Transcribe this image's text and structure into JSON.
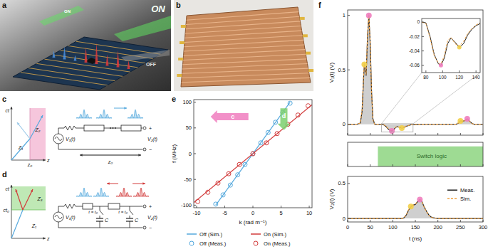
{
  "panels": {
    "labels": [
      "a",
      "b",
      "c",
      "d",
      "e",
      "f"
    ],
    "a": {
      "texts": [
        "ON",
        "OFF",
        "ON"
      ]
    },
    "c": {
      "spacetime": {
        "time_axis": "ct",
        "space_axis": "z",
        "boundary": "z₀",
        "regions": [
          "Z₁",
          "Z₂"
        ]
      },
      "circuit": {
        "source": "V₁(t)",
        "load": "V₂(t)",
        "polarity": [
          "+",
          "−"
        ],
        "length": "z₀"
      }
    },
    "d": {
      "spacetime": {
        "time_axis": "ct",
        "space_axis": "z",
        "boundary": "ct₀",
        "regions": [
          "Z₁",
          "Z₃"
        ]
      },
      "circuit": {
        "source": "V₁(t)",
        "load": "V₂(t)",
        "polarity": [
          "+",
          "−"
        ],
        "switch_labels": [
          "t = t₀",
          "t = t₀"
        ],
        "capacitor_labels": [
          "C",
          "C"
        ]
      }
    }
  },
  "chart_data": [
    {
      "type": "line",
      "x_label": "k (rad m⁻¹)",
      "y_label": "f (MHz)",
      "xlim": [
        -10.5,
        10.5
      ],
      "ylim": [
        -105,
        105
      ],
      "xticks": [
        -10,
        -5,
        0,
        5,
        10
      ],
      "yticks": [
        -100,
        -50,
        0,
        50,
        100
      ],
      "grid": false,
      "legend": "bottom",
      "series": [
        {
          "name": "Off (Sim.)",
          "type": "line",
          "color": "#55a9dd",
          "x": [
            -6.6,
            6.6
          ],
          "values": [
            -100,
            100
          ]
        },
        {
          "name": "On (Sim.)",
          "type": "line",
          "color": "#d23b3b",
          "x": [
            -10.5,
            10.5
          ],
          "values": [
            -95,
            95
          ]
        },
        {
          "name": "Off (Meas.)",
          "type": "scatter",
          "marker": "open-circle",
          "color": "#55a9dd",
          "x": [
            -6.6,
            -5.3,
            -4,
            -2.7,
            -1.4,
            0,
            1.4,
            2.7,
            4,
            5.3,
            6.6
          ],
          "values": [
            -98,
            -80,
            -61,
            -41,
            -21,
            0,
            21,
            41,
            61,
            80,
            98
          ]
        },
        {
          "name": "On (Meas.)",
          "type": "scatter",
          "marker": "open-circle",
          "color": "#d23b3b",
          "x": [
            -9.8,
            -8,
            -6.2,
            -4.3,
            -2.4,
            0,
            2.4,
            4.3,
            6.2,
            8,
            9.8
          ],
          "values": [
            -93,
            -75,
            -57,
            -39,
            -21,
            0,
            21,
            39,
            57,
            75,
            93
          ]
        }
      ],
      "annotations": [
        {
          "text": "c",
          "color": "#f07dbe",
          "x": -0.8,
          "y": 72,
          "x_end": -7.5,
          "y_end": 72
        },
        {
          "text": "d",
          "color": "#7ccf6e",
          "x": 5.5,
          "y": 88,
          "x_end": 5.5,
          "y_end": 46
        }
      ]
    },
    {
      "type": "line",
      "y_label": "V₁(t) (V)",
      "xlim": [
        0,
        300
      ],
      "ylim": [
        -0.1,
        1.05
      ],
      "xticks": [
        0,
        50,
        100,
        150,
        200,
        250,
        300
      ],
      "yticks": [
        0,
        0.5,
        1
      ],
      "tick_labels": "y",
      "series": [
        {
          "type": "area",
          "color": "#222222",
          "x": [
            0,
            20,
            28,
            32,
            35,
            37,
            39,
            41,
            44,
            47,
            50,
            53,
            56,
            60,
            70,
            80,
            85,
            90,
            95,
            98,
            102,
            106,
            110,
            115,
            120,
            125,
            130,
            140,
            160,
            200,
            240,
            245,
            250,
            255,
            260,
            265,
            270,
            275,
            280,
            300
          ],
          "values": [
            0,
            0,
            0.01,
            0.12,
            0.4,
            0.55,
            0.5,
            0.45,
            0.8,
            1.0,
            0.75,
            0.3,
            0.05,
            0,
            0,
            -0.005,
            -0.02,
            -0.045,
            -0.058,
            -0.06,
            -0.05,
            -0.03,
            -0.022,
            -0.028,
            -0.035,
            -0.03,
            -0.018,
            -0.005,
            0,
            0,
            0,
            0.01,
            0.03,
            0.028,
            0.035,
            0.05,
            0.03,
            0.01,
            0,
            0
          ]
        },
        {
          "type": "line",
          "line_style": "dashed",
          "color": "#f0a040",
          "x": [
            0,
            20,
            28,
            32,
            35,
            37,
            39,
            41,
            44,
            47,
            50,
            53,
            56,
            60,
            70,
            80,
            85,
            90,
            95,
            98,
            102,
            106,
            110,
            115,
            120,
            125,
            130,
            140,
            160,
            200,
            240,
            245,
            250,
            255,
            260,
            265,
            270,
            275,
            280,
            300
          ],
          "values": [
            0,
            0,
            0.01,
            0.13,
            0.42,
            0.56,
            0.49,
            0.46,
            0.82,
            1.01,
            0.73,
            0.28,
            0.04,
            0,
            0,
            -0.004,
            -0.018,
            -0.042,
            -0.056,
            -0.058,
            -0.048,
            -0.028,
            -0.02,
            -0.027,
            -0.034,
            -0.028,
            -0.016,
            -0.004,
            0,
            0,
            0,
            0.012,
            0.032,
            0.027,
            0.034,
            0.048,
            0.028,
            0.008,
            0,
            0
          ]
        }
      ],
      "markers": {
        "x": [
          37,
          47,
          98,
          120,
          250,
          265
        ],
        "values": [
          0.55,
          1.0,
          -0.06,
          -0.035,
          0.03,
          0.05
        ],
        "colors": [
          "#f2cf4a",
          "#f07dbe",
          "#f07dbe",
          "#f2cf4a",
          "#f2cf4a",
          "#f07dbe"
        ]
      }
    },
    {
      "type": "line",
      "xlim": [
        75,
        145
      ],
      "ylim": [
        -0.07,
        0.005
      ],
      "xticks": [
        80,
        100,
        120,
        140
      ],
      "yticks": [
        0,
        -0.02,
        -0.04,
        -0.06
      ],
      "series": [
        {
          "type": "line",
          "color": "#222222",
          "x": [
            75,
            80,
            85,
            90,
            95,
            98,
            102,
            106,
            110,
            115,
            120,
            125,
            130,
            135,
            140,
            145
          ],
          "values": [
            0,
            -0.001,
            -0.02,
            -0.045,
            -0.058,
            -0.06,
            -0.05,
            -0.03,
            -0.022,
            -0.028,
            -0.035,
            -0.03,
            -0.018,
            -0.01,
            -0.005,
            -0.002
          ]
        },
        {
          "type": "line",
          "line_style": "dashed",
          "color": "#f0a040",
          "x": [
            75,
            80,
            85,
            90,
            95,
            98,
            102,
            106,
            110,
            115,
            120,
            125,
            130,
            135,
            140,
            145
          ],
          "values": [
            0,
            -0.002,
            -0.022,
            -0.047,
            -0.057,
            -0.058,
            -0.047,
            -0.026,
            -0.021,
            -0.03,
            -0.033,
            -0.027,
            -0.016,
            -0.009,
            -0.004,
            -0.001
          ]
        }
      ],
      "markers": {
        "x": [
          98,
          120
        ],
        "values": [
          -0.06,
          -0.035
        ],
        "colors": [
          "#f07dbe",
          "#f2cf4a"
        ]
      }
    },
    {
      "type": "area",
      "title": "Switch logic",
      "xlim": [
        0,
        300
      ],
      "ylim": [
        0,
        1.2
      ],
      "xticks": [
        0,
        50,
        100,
        150,
        200,
        250,
        300
      ],
      "tick_labels": false,
      "color": "#9edb93",
      "x": [
        0,
        67,
        67,
        300
      ],
      "values": [
        0,
        0,
        1,
        1
      ]
    },
    {
      "type": "line",
      "x_label": "t (ns)",
      "y_label": "V₂(t) (V)",
      "xlim": [
        0,
        300
      ],
      "ylim": [
        -0.05,
        0.6
      ],
      "xticks": [
        0,
        50,
        100,
        150,
        200,
        250,
        300
      ],
      "yticks": [
        0,
        0.5
      ],
      "legend": "right",
      "series": [
        {
          "name": "Meas.",
          "type": "area",
          "color": "#222222",
          "x": [
            0,
            100,
            120,
            125,
            130,
            135,
            140,
            145,
            150,
            155,
            160,
            163,
            166,
            170,
            175,
            180,
            185,
            190,
            200,
            250,
            300
          ],
          "values": [
            0,
            0,
            0,
            0.01,
            0.05,
            0.12,
            0.17,
            0.19,
            0.2,
            0.24,
            0.27,
            0.26,
            0.22,
            0.16,
            0.1,
            0.05,
            0.02,
            0.01,
            0,
            0,
            0
          ]
        },
        {
          "name": "Sim.",
          "type": "line",
          "line_style": "dashed",
          "color": "#f0a040",
          "x": [
            0,
            100,
            120,
            125,
            130,
            135,
            140,
            145,
            150,
            155,
            160,
            163,
            166,
            170,
            175,
            180,
            185,
            190,
            200,
            250,
            300
          ],
          "values": [
            0,
            0,
            0,
            0.012,
            0.055,
            0.125,
            0.172,
            0.188,
            0.205,
            0.245,
            0.275,
            0.262,
            0.218,
            0.155,
            0.095,
            0.045,
            0.018,
            0.008,
            0,
            0,
            0
          ]
        }
      ],
      "markers": {
        "x": [
          140,
          160
        ],
        "values": [
          0.17,
          0.27
        ],
        "colors": [
          "#f2cf4a",
          "#f07dbe"
        ]
      }
    }
  ]
}
